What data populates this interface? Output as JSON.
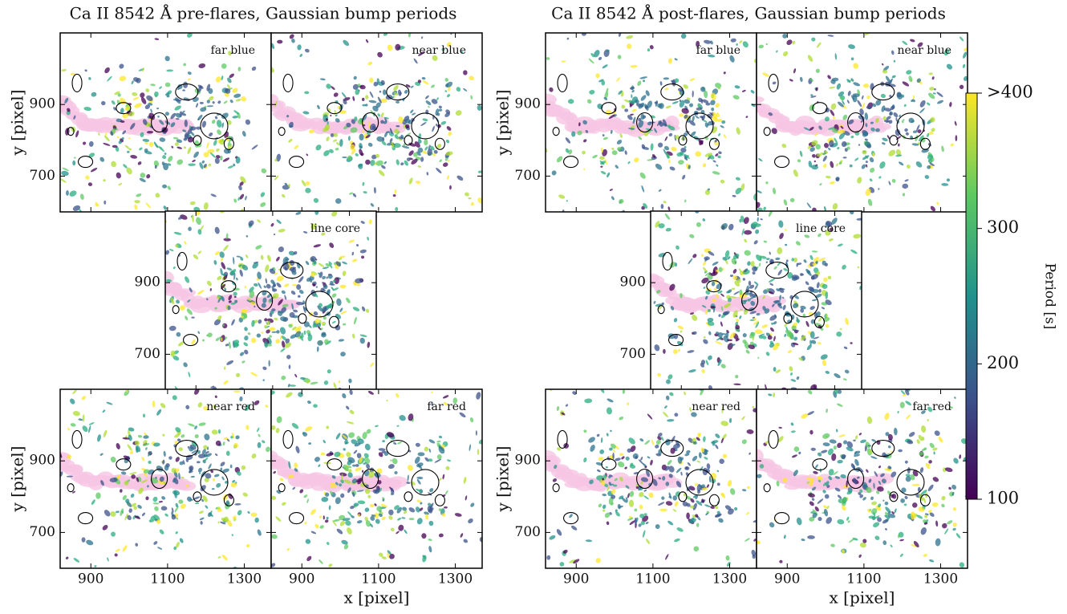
{
  "chart_data": [
    {
      "type": "image",
      "title": "Ca II 8542 Å pre-flares, Gaussian bump periods",
      "panels": [
        "far blue",
        "near blue",
        "line core",
        "near red",
        "far red"
      ],
      "xlabel": "x [pixel]",
      "ylabel": "y [pixel]",
      "xlim": [
        820,
        1370
      ],
      "ylim": [
        600,
        1100
      ],
      "xticks": [
        900,
        1100,
        1300
      ],
      "yticks": [
        700,
        900
      ]
    },
    {
      "type": "image",
      "title": "Ca II 8542 Å post-flares, Gaussian bump periods",
      "panels": [
        "far blue",
        "near blue",
        "line core",
        "near red",
        "far red"
      ],
      "xlabel": "x [pixel]",
      "ylabel": "y [pixel]",
      "xlim": [
        820,
        1370
      ],
      "ylim": [
        600,
        1100
      ],
      "xticks": [
        900,
        1100,
        1300
      ],
      "yticks": [
        700,
        900
      ]
    },
    {
      "type": "colorbar",
      "label": "Period [s]",
      "ylim": [
        100,
        400
      ],
      "yticks": [
        100,
        200,
        300,
        {
          "value": 400,
          "label": ">400"
        }
      ],
      "colors": [
        "#440154",
        "#3b528b",
        "#21918c",
        "#5ec962",
        "#fde725"
      ]
    }
  ]
}
